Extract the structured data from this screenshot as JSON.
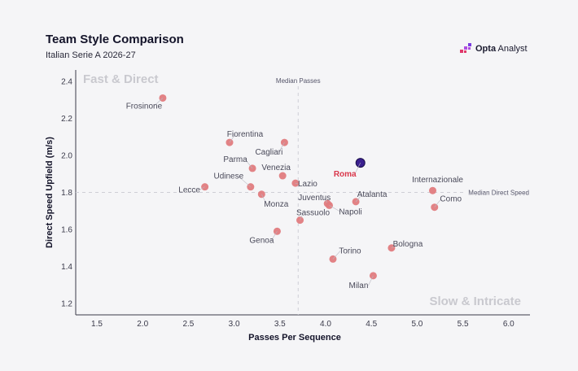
{
  "header": {
    "title": "Team Style Comparison",
    "subtitle": "Italian Serie A 2026-27",
    "brand_bold": "Opta",
    "brand_rest": " Analyst"
  },
  "colors": {
    "point": "#e07b7e",
    "highlight": "#3a1f8f",
    "highlight_label": "#d9364a",
    "quadrant_text": "#c9c9cf",
    "median_line": "#cfcfd6"
  },
  "chart_data": {
    "type": "scatter",
    "xlabel": "Passes Per Sequence",
    "ylabel": "Direct Speed Upfield (m/s)",
    "xlim": [
      1.25,
      6.25
    ],
    "ylim": [
      1.15,
      2.45
    ],
    "xticks": [
      1.5,
      2.0,
      2.5,
      3.0,
      3.5,
      4.0,
      4.5,
      5.0,
      5.5,
      6.0
    ],
    "yticks": [
      1.2,
      1.4,
      1.6,
      1.8,
      2.0,
      2.2,
      2.4
    ],
    "xtick_labels": [
      "1.5",
      "2.0",
      "2.5",
      "3.0",
      "3.5",
      "4.0",
      "4.5",
      "5.0",
      "5.5",
      "6.0"
    ],
    "ytick_labels": [
      "1.2",
      "1.4",
      "1.6",
      "1.8",
      "2.0",
      "2.2",
      "2.4"
    ],
    "median_x": 3.7,
    "median_y": 1.8,
    "median_x_label": "Median Passes",
    "median_y_label": "Median Direct Speed",
    "quadrants": {
      "top_left": "Fast & Direct",
      "bottom_right": "Slow & Intricate"
    },
    "grid": false,
    "legend": "none",
    "points": [
      {
        "team": "Frosinone",
        "x": 2.22,
        "y": 2.31
      },
      {
        "team": "Fiorentina",
        "x": 2.95,
        "y": 2.07
      },
      {
        "team": "Cagliari",
        "x": 3.55,
        "y": 2.07
      },
      {
        "team": "Parma",
        "x": 3.2,
        "y": 1.93
      },
      {
        "team": "Venezia",
        "x": 3.53,
        "y": 1.89
      },
      {
        "team": "Udinese",
        "x": 3.18,
        "y": 1.83
      },
      {
        "team": "Lecce",
        "x": 2.68,
        "y": 1.83
      },
      {
        "team": "Lazio",
        "x": 3.67,
        "y": 1.85
      },
      {
        "team": "Monza",
        "x": 3.3,
        "y": 1.79
      },
      {
        "team": "Juventus",
        "x": 4.02,
        "y": 1.74
      },
      {
        "team": "Napoli",
        "x": 4.04,
        "y": 1.73
      },
      {
        "team": "Atalanta",
        "x": 4.33,
        "y": 1.75
      },
      {
        "team": "Sassuolo",
        "x": 3.72,
        "y": 1.65
      },
      {
        "team": "Genoa",
        "x": 3.47,
        "y": 1.59
      },
      {
        "team": "Roma",
        "x": 4.38,
        "y": 1.96,
        "highlight": true
      },
      {
        "team": "Internazionale",
        "x": 5.17,
        "y": 1.81
      },
      {
        "team": "Como",
        "x": 5.19,
        "y": 1.72
      },
      {
        "team": "Bologna",
        "x": 4.72,
        "y": 1.5
      },
      {
        "team": "Torino",
        "x": 4.08,
        "y": 1.44
      },
      {
        "team": "Milan",
        "x": 4.52,
        "y": 1.35
      }
    ]
  }
}
